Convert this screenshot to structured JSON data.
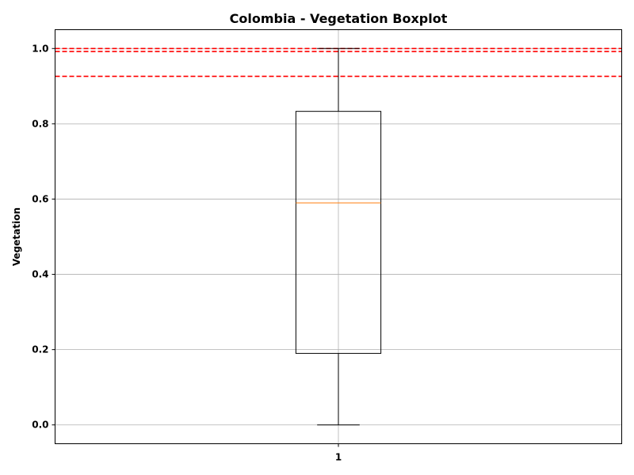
{
  "chart_data": {
    "type": "boxplot",
    "title": "Colombia - Vegetation Boxplot",
    "xlabel": "",
    "ylabel": "Vegetation",
    "ylim": [
      -0.05,
      1.05
    ],
    "yticks": [
      "0.0",
      "0.2",
      "0.4",
      "0.6",
      "0.8",
      "1.0"
    ],
    "ytick_values": [
      0.0,
      0.2,
      0.4,
      0.6,
      0.8,
      1.0
    ],
    "xticks": [
      "1"
    ],
    "grid": true,
    "boxes": [
      {
        "position": 1,
        "whisker_low": 0.0,
        "q1": 0.19,
        "median": 0.59,
        "q3": 0.833,
        "whisker_high": 1.0
      }
    ],
    "reference_lines": [
      1.0,
      0.992,
      0.926
    ],
    "colors": {
      "box": "#000000",
      "median": "#ff7f0e",
      "grid": "#b0b0b0",
      "reference": "#ff0000"
    }
  }
}
